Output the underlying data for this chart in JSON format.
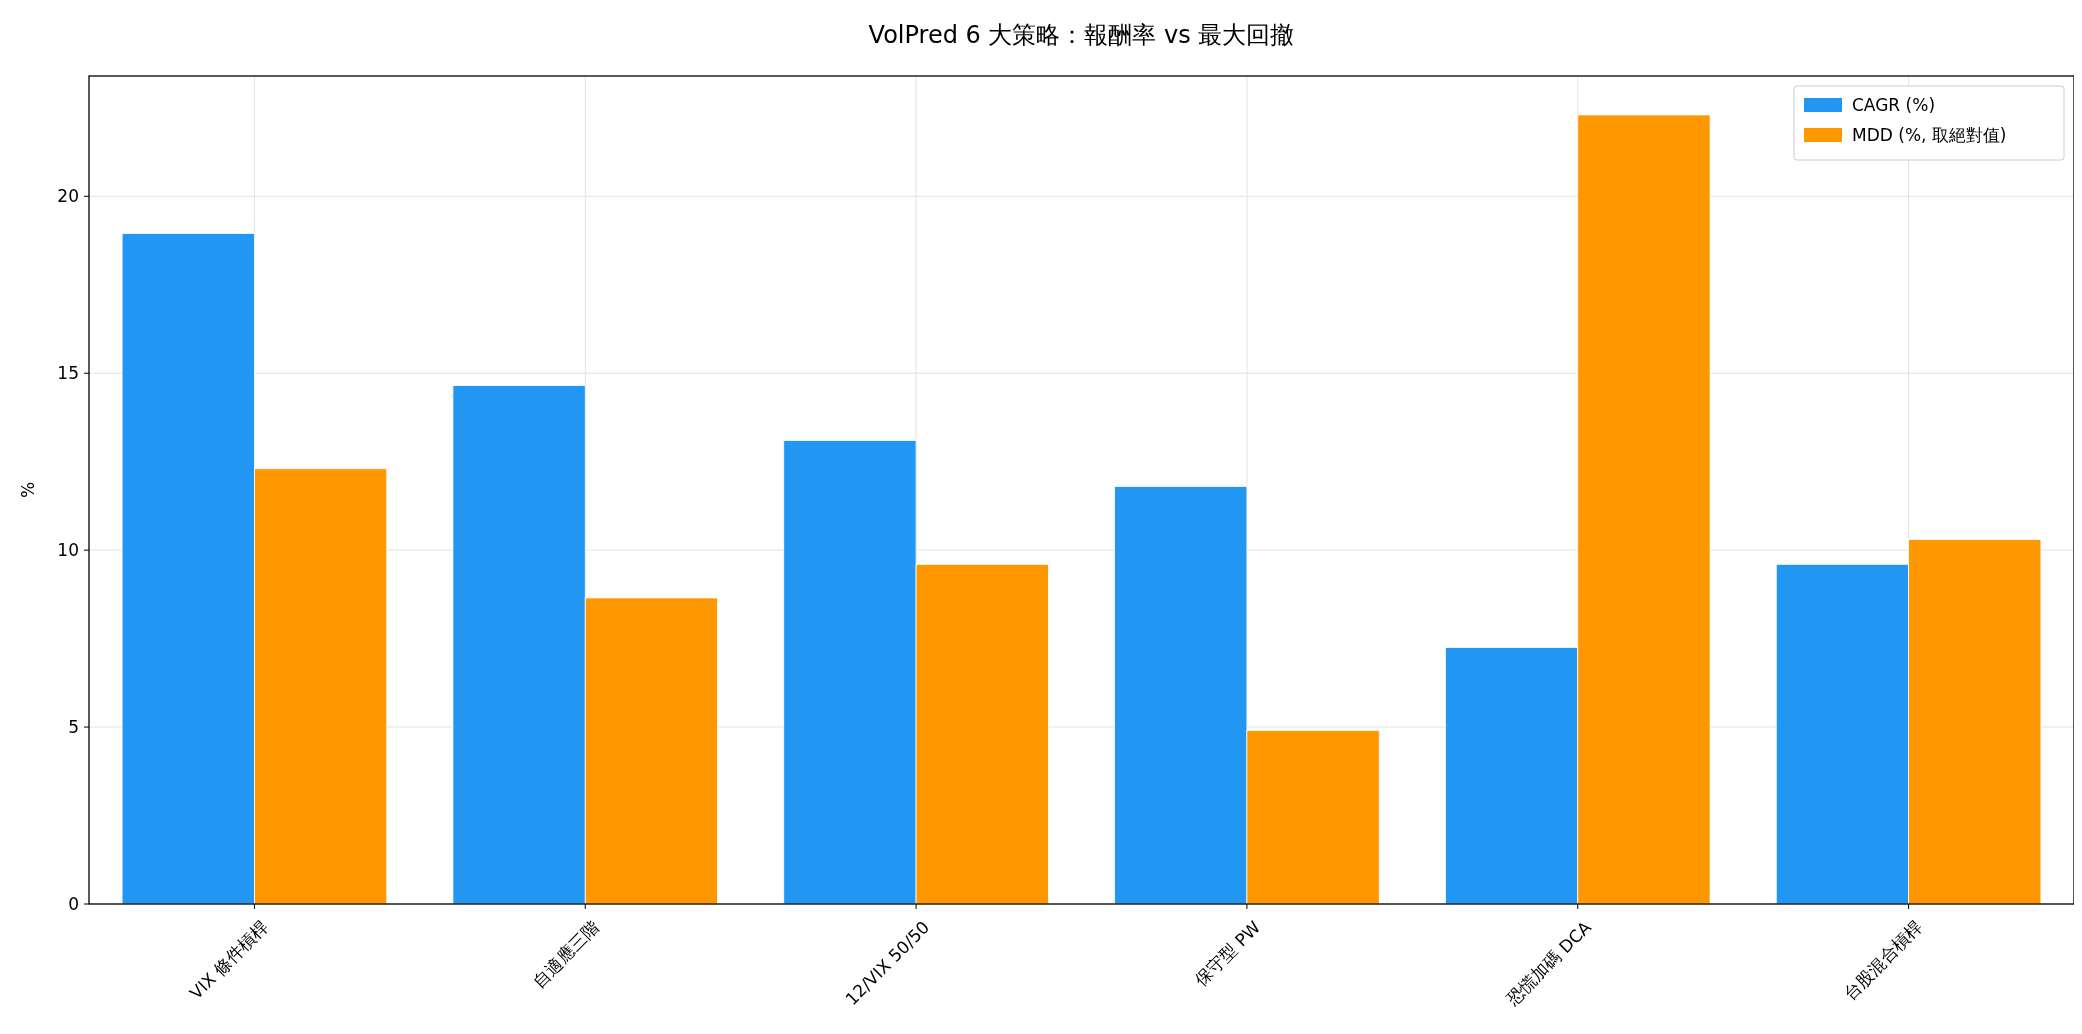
{
  "chart_data": {
    "type": "bar",
    "title": "VolPred 6 大策略：報酬率 vs 最大回撤",
    "ylabel": "%",
    "categories": [
      "VIX 條件槓桿",
      "自適應三階",
      "12/VIX 50/50",
      "保守型 PW",
      "恐慌加碼 DCA",
      "台股混合槓桿"
    ],
    "series": [
      {
        "name": "CAGR (%)",
        "color": "#2196f3",
        "values": [
          18.95,
          14.65,
          13.1,
          11.8,
          7.25,
          9.6
        ]
      },
      {
        "name": "MDD (%, 取絕對值)",
        "color": "#ff9800",
        "values": [
          12.3,
          8.65,
          9.6,
          4.9,
          22.3,
          10.3
        ]
      }
    ],
    "ylim": [
      0,
      23.4
    ],
    "yticks": [
      0,
      5,
      10,
      15,
      20
    ],
    "grid": true,
    "legend": "top right"
  }
}
